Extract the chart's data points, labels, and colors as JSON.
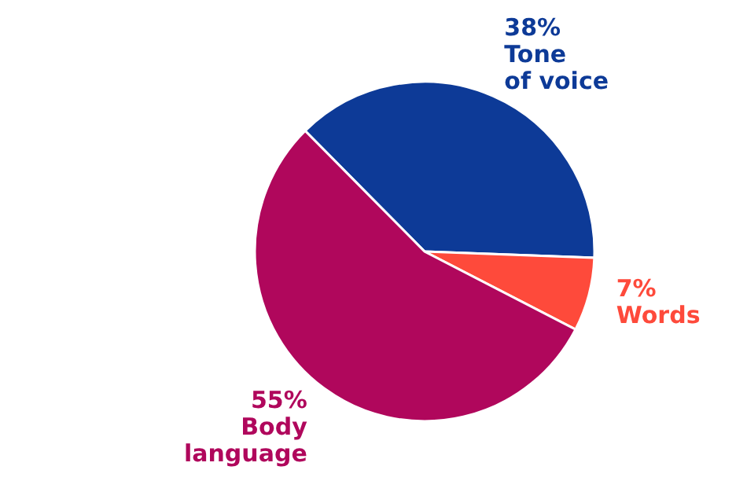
{
  "chart_data": {
    "type": "pie",
    "categories": [
      "Tone of voice",
      "Words",
      "Body language"
    ],
    "values": [
      38,
      7,
      55
    ],
    "colors": [
      "#0d3a97",
      "#fe4a3b",
      "#b0075c"
    ],
    "value_labels": [
      "38%",
      "7%",
      "55%"
    ]
  }
}
